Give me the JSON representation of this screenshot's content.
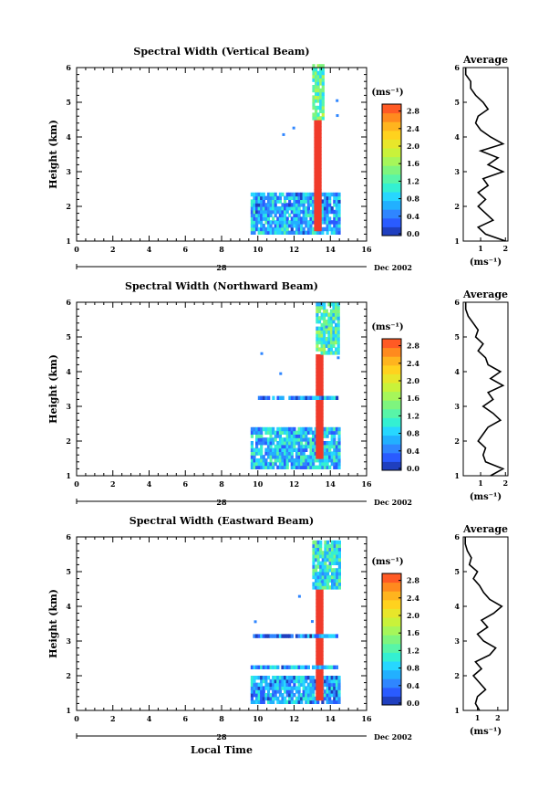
{
  "figure": {
    "date_label": "Dec 2002",
    "day_label": "28",
    "xlabel": "Local Time",
    "ylabel": "Height (km)",
    "avg_title": "Average",
    "avg_unit": "(ms⁻¹)",
    "cbar_unit": "(ms⁻¹)",
    "colors": {
      "colormap": [
        "#2b2b7a",
        "#1f3fbf",
        "#2a5bff",
        "#2f86ff",
        "#22b0ff",
        "#27d7ff",
        "#34f0d2",
        "#58f5a8",
        "#7ef57e",
        "#a6f65a",
        "#c9f23a",
        "#e8e62a",
        "#ffd21e",
        "#ffb41e",
        "#ff8a1e",
        "#ff5a24",
        "#f03a2a"
      ],
      "ink": "#000000"
    }
  },
  "chart_data": [
    {
      "type": "heatmap",
      "title": "Spectral Width (Vertical Beam)",
      "xlabel": "Local Time",
      "ylabel": "Height (km)",
      "xlim": [
        0,
        16
      ],
      "ylim": [
        1,
        6
      ],
      "x_ticks": [
        "0",
        "2",
        "4",
        "6",
        "8",
        "10",
        "12",
        "14",
        "16"
      ],
      "y_ticks": [
        "1",
        "2",
        "3",
        "4",
        "5",
        "6"
      ],
      "colorbar": {
        "ticks": [
          "0.0",
          "0.4",
          "0.8",
          "1.2",
          "1.6",
          "2.0",
          "2.4",
          "2.8"
        ],
        "range": [
          0.0,
          3.0
        ],
        "unit": "(ms⁻¹)"
      },
      "features": [
        {
          "t0": 9.6,
          "t1": 14.5,
          "h0": 1.2,
          "h1": 2.4,
          "level": 0.7
        },
        {
          "t0": 13.1,
          "t1": 13.4,
          "h0": 1.3,
          "h1": 4.5,
          "level": 3.0
        },
        {
          "t0": 13.0,
          "t1": 13.6,
          "h0": 4.5,
          "h1": 6.0,
          "level": 1.3
        }
      ],
      "average_profile": {
        "title": "Average",
        "unit": "(ms⁻¹)",
        "x_ticks": [
          "1",
          "2"
        ],
        "xlim": [
          0.3,
          2.1
        ],
        "y_ticks": [
          "1",
          "2",
          "3",
          "4",
          "5",
          "6"
        ],
        "height": [
          1.0,
          1.2,
          1.4,
          1.6,
          1.8,
          2.0,
          2.2,
          2.4,
          2.6,
          2.8,
          3.0,
          3.2,
          3.4,
          3.6,
          3.8,
          4.0,
          4.2,
          4.4,
          4.6,
          4.8,
          5.0,
          5.2,
          5.4,
          5.6,
          5.8,
          6.0
        ],
        "value": [
          2.0,
          1.2,
          0.9,
          1.5,
          1.2,
          0.9,
          1.2,
          0.9,
          1.3,
          1.1,
          1.9,
          1.3,
          1.7,
          1.0,
          1.9,
          1.4,
          1.0,
          0.8,
          0.9,
          1.3,
          1.1,
          0.8,
          0.6,
          0.6,
          0.4,
          0.4
        ]
      }
    },
    {
      "type": "heatmap",
      "title": "Spectral Width (Northward Beam)",
      "xlabel": "Local Time",
      "ylabel": "Height (km)",
      "xlim": [
        0,
        16
      ],
      "ylim": [
        1,
        6
      ],
      "x_ticks": [
        "0",
        "2",
        "4",
        "6",
        "8",
        "10",
        "12",
        "14",
        "16"
      ],
      "y_ticks": [
        "1",
        "2",
        "3",
        "4",
        "5",
        "6"
      ],
      "colorbar": {
        "ticks": [
          "0.0",
          "0.4",
          "0.8",
          "1.2",
          "1.6",
          "2.0",
          "2.4",
          "2.8"
        ],
        "range": [
          0.0,
          3.0
        ],
        "unit": "(ms⁻¹)"
      },
      "features": [
        {
          "t0": 9.6,
          "t1": 14.5,
          "h0": 1.2,
          "h1": 2.4,
          "level": 0.8
        },
        {
          "t0": 13.2,
          "t1": 13.5,
          "h0": 1.5,
          "h1": 4.5,
          "level": 3.0
        },
        {
          "t0": 10.0,
          "t1": 14.3,
          "h0": 3.2,
          "h1": 3.3,
          "level": 0.6
        },
        {
          "t0": 13.2,
          "t1": 14.4,
          "h0": 4.5,
          "h1": 5.9,
          "level": 1.2
        }
      ],
      "average_profile": {
        "title": "Average",
        "unit": "(ms⁻¹)",
        "x_ticks": [
          "1",
          "2"
        ],
        "xlim": [
          0.3,
          2.1
        ],
        "y_ticks": [
          "1",
          "2",
          "3",
          "4",
          "5",
          "6"
        ],
        "height": [
          1.0,
          1.2,
          1.4,
          1.6,
          1.8,
          2.0,
          2.2,
          2.4,
          2.6,
          2.8,
          3.0,
          3.2,
          3.4,
          3.6,
          3.8,
          4.0,
          4.2,
          4.4,
          4.6,
          4.8,
          5.0,
          5.2,
          5.4,
          5.6,
          5.8,
          6.0
        ],
        "value": [
          1.4,
          1.9,
          1.2,
          1.1,
          1.2,
          0.9,
          1.1,
          1.3,
          1.8,
          1.5,
          1.1,
          1.5,
          1.3,
          1.9,
          1.4,
          1.8,
          1.3,
          1.2,
          0.9,
          1.1,
          0.8,
          0.9,
          0.7,
          0.5,
          0.4,
          0.4
        ]
      }
    },
    {
      "type": "heatmap",
      "title": "Spectral Width (Eastward Beam)",
      "xlabel": "Local Time",
      "ylabel": "Height (km)",
      "xlim": [
        0,
        16
      ],
      "ylim": [
        1,
        6
      ],
      "x_ticks": [
        "0",
        "2",
        "4",
        "6",
        "8",
        "10",
        "12",
        "14",
        "16"
      ],
      "y_ticks": [
        "1",
        "2",
        "3",
        "4",
        "5",
        "6"
      ],
      "colorbar": {
        "ticks": [
          "0.0",
          "0.4",
          "0.8",
          "1.2",
          "1.6",
          "2.0",
          "2.4",
          "2.8"
        ],
        "range": [
          0.0,
          3.0
        ],
        "unit": "(ms⁻¹)"
      },
      "features": [
        {
          "t0": 9.6,
          "t1": 14.5,
          "h0": 1.2,
          "h1": 2.0,
          "level": 0.6
        },
        {
          "t0": 13.2,
          "t1": 13.5,
          "h0": 1.3,
          "h1": 4.5,
          "level": 3.0
        },
        {
          "t0": 9.6,
          "t1": 14.3,
          "h0": 2.2,
          "h1": 2.3,
          "level": 0.6
        },
        {
          "t0": 9.6,
          "t1": 14.3,
          "h0": 3.1,
          "h1": 3.2,
          "level": 0.5
        },
        {
          "t0": 13.0,
          "t1": 14.5,
          "h0": 4.5,
          "h1": 5.8,
          "level": 1.0
        }
      ],
      "average_profile": {
        "title": "Average",
        "unit": "(ms⁻¹)",
        "x_ticks": [
          "1",
          "2"
        ],
        "xlim": [
          0.3,
          2.5
        ],
        "y_ticks": [
          "1",
          "2",
          "3",
          "4",
          "5",
          "6"
        ],
        "height": [
          1.0,
          1.2,
          1.4,
          1.6,
          1.8,
          2.0,
          2.2,
          2.4,
          2.6,
          2.8,
          3.0,
          3.2,
          3.4,
          3.6,
          3.8,
          4.0,
          4.2,
          4.4,
          4.6,
          4.8,
          5.0,
          5.2,
          5.4,
          5.6,
          5.8,
          6.0
        ],
        "value": [
          1.1,
          0.9,
          1.0,
          1.4,
          1.1,
          0.8,
          1.2,
          0.9,
          1.6,
          1.9,
          1.3,
          1.0,
          1.5,
          1.2,
          1.8,
          2.2,
          1.6,
          1.3,
          1.1,
          0.8,
          1.0,
          0.6,
          0.7,
          0.5,
          0.4,
          0.4
        ]
      }
    }
  ]
}
